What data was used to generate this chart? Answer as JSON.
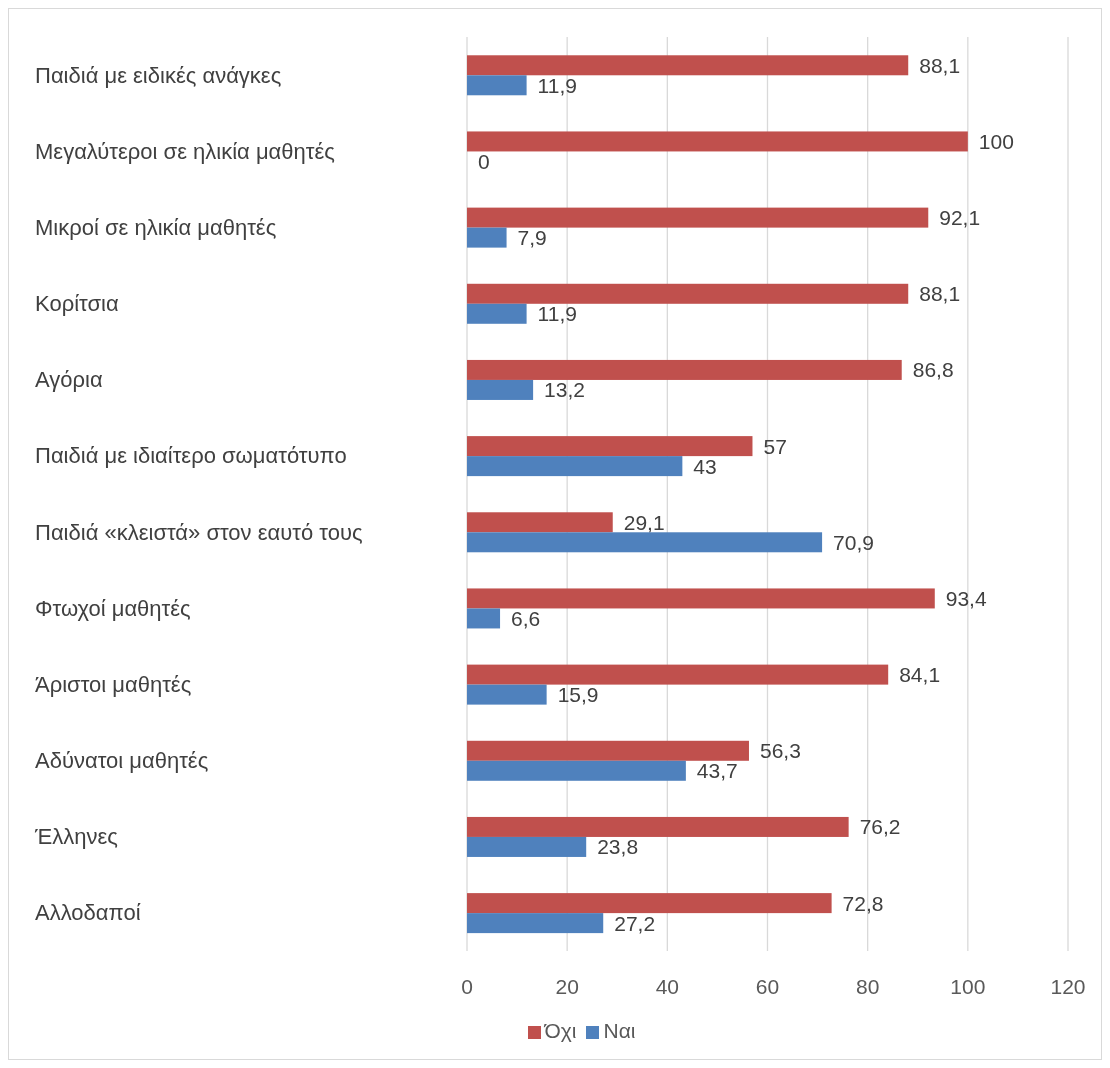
{
  "chart_data": {
    "type": "bar",
    "orientation": "horizontal",
    "categories": [
      "Παιδιά με ειδικές ανάγκες",
      "Μεγαλύτεροι σε ηλικία μαθητές",
      "Μικροί σε ηλικία μαθητές",
      "Κορίτσια",
      "Αγόρια",
      "Παιδιά με ιδιαίτερο σωματότυπο",
      "Παιδιά «κλειστά» στον εαυτό τους",
      "Φτωχοί μαθητές",
      "Άριστοι μαθητές",
      "Αδύνατοι μαθητές",
      "Έλληνες",
      "Αλλοδαποί"
    ],
    "series": [
      {
        "name": "Όχι",
        "color": "#c0504d",
        "values": [
          88.1,
          100,
          92.1,
          88.1,
          86.8,
          57,
          29.1,
          93.4,
          84.1,
          56.3,
          76.2,
          72.8
        ],
        "value_labels": [
          "88,1",
          "100",
          "92,1",
          "88,1",
          "86,8",
          "57",
          "29,1",
          "93,4",
          "84,1",
          "56,3",
          "76,2",
          "72,8"
        ]
      },
      {
        "name": "Ναι",
        "color": "#4f81bd",
        "values": [
          11.9,
          0,
          7.9,
          11.9,
          13.2,
          43,
          70.9,
          6.6,
          15.9,
          43.7,
          23.8,
          27.2
        ],
        "value_labels": [
          "11,9",
          "0",
          "7,9",
          "11,9",
          "13,2",
          "43",
          "70,9",
          "6,6",
          "15,9",
          "43,7",
          "23,8",
          "27,2"
        ]
      }
    ],
    "xlim": [
      0,
      120
    ],
    "xticks": [
      0,
      20,
      40,
      60,
      80,
      100,
      120
    ],
    "grid": "x",
    "legend": "bottom"
  }
}
